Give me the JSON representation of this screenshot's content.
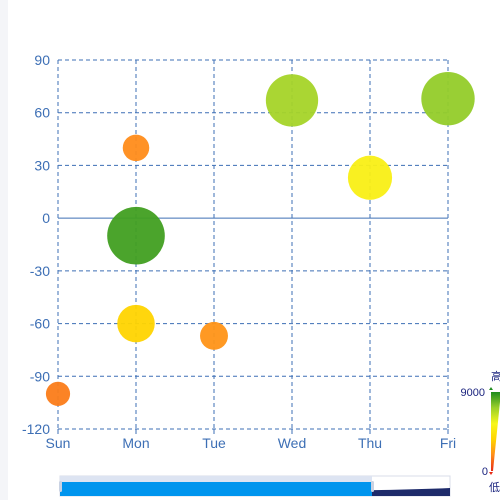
{
  "chart_data": {
    "type": "scatter",
    "x_categories": [
      "Sun",
      "Mon",
      "Tue",
      "Wed",
      "Thu",
      "Fri"
    ],
    "ylim": [
      -120,
      90
    ],
    "y_ticks": [
      "90",
      "60",
      "30",
      "0",
      "-30",
      "-60",
      "-90",
      "-120"
    ],
    "grid": true,
    "points": [
      {
        "x": "Sun",
        "y": -100,
        "value": 1500
      },
      {
        "x": "Mon",
        "y": 40,
        "value": 1800
      },
      {
        "x": "Mon",
        "y": -10,
        "value": 8500
      },
      {
        "x": "Mon",
        "y": -60,
        "value": 3600
      },
      {
        "x": "Tue",
        "y": -67,
        "value": 2000
      },
      {
        "x": "Wed",
        "y": 67,
        "value": 7000
      },
      {
        "x": "Thu",
        "y": 23,
        "value": 5000
      },
      {
        "x": "Fri",
        "y": 68,
        "value": 7300
      }
    ],
    "visual_map": {
      "min": 0,
      "max": 9000,
      "min_label": "0",
      "max_label": "9000",
      "high_text": "高",
      "low_text": "低",
      "colors": [
        "#e62a15",
        "#ff8c1a",
        "#ffd400",
        "#f7f71b",
        "#9bd02a",
        "#1e8c1e"
      ]
    },
    "datazoom": {
      "start": 0,
      "end": 80
    }
  }
}
